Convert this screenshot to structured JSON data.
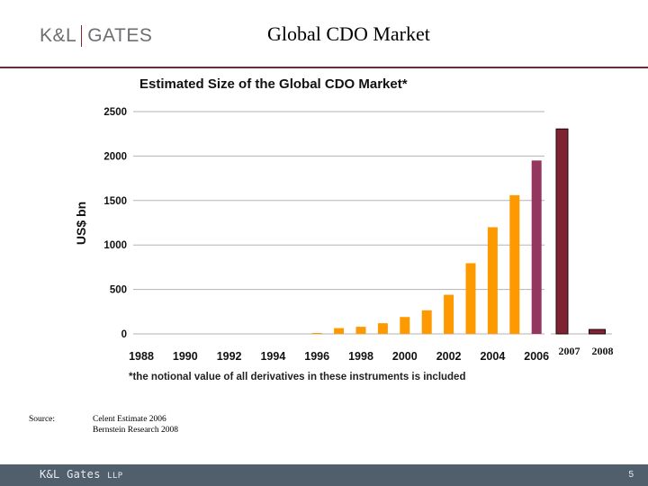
{
  "header": {
    "logo_left": "K&L",
    "logo_right": "GATES",
    "slide_title": "Global CDO Market"
  },
  "chart_data": {
    "type": "bar",
    "title": "Estimated Size of the Global CDO Market*",
    "xlabel": "",
    "ylabel": "US$ bn",
    "ylim": [
      0,
      2500
    ],
    "yticks": [
      0,
      500,
      1000,
      1500,
      2000,
      2500
    ],
    "grid": true,
    "categories": [
      "1988",
      "1989",
      "1990",
      "1991",
      "1992",
      "1993",
      "1994",
      "1995",
      "1996",
      "1997",
      "1998",
      "1999",
      "2000",
      "2001",
      "2002",
      "2003",
      "2004",
      "2005",
      "2006",
      "2007",
      "2008"
    ],
    "xtick_labels": [
      "1988",
      "1990",
      "1992",
      "1994",
      "1996",
      "1998",
      "2000",
      "2002",
      "2004",
      "2006"
    ],
    "xtick_labels_added": [
      "2007",
      "2008"
    ],
    "series": [
      {
        "name": "Celent estimate",
        "color": "#ff9900",
        "highlight_color": "#943660",
        "highlight_category": "2006",
        "values": [
          0,
          0,
          0,
          0,
          0,
          0,
          0,
          0,
          10,
          65,
          80,
          120,
          190,
          265,
          440,
          795,
          1200,
          1560,
          1950,
          null,
          null
        ]
      },
      {
        "name": "Bernstein Research",
        "color": "#7f2232",
        "values": [
          null,
          null,
          null,
          null,
          null,
          null,
          null,
          null,
          null,
          null,
          null,
          null,
          null,
          null,
          null,
          null,
          null,
          null,
          null,
          2305,
          50
        ]
      }
    ],
    "footnote": "*the notional value of all derivatives in these instruments is included"
  },
  "source": {
    "label": "Source:",
    "items": [
      "Celent Estimate 2006",
      "Bernstein Research 2008"
    ]
  },
  "footer": {
    "brand": "K&L Gates",
    "brand_suffix": "LLP",
    "page_number": "5"
  }
}
